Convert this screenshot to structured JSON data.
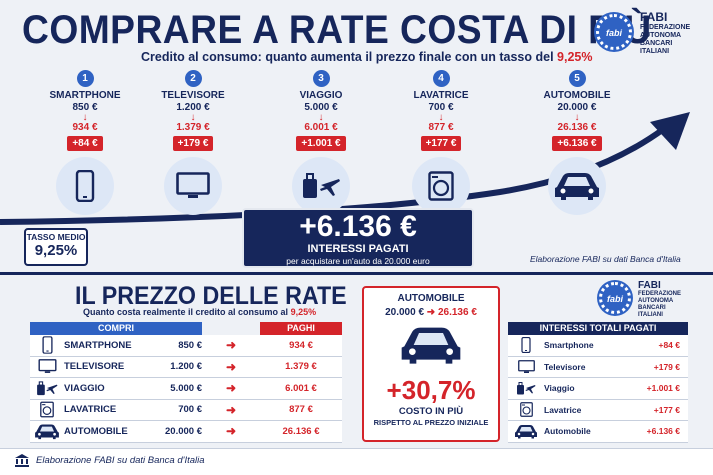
{
  "header": {
    "title": "COMPRARE A RATE COSTA DI PIÙ",
    "subtitle": "Credito al consumo: quanto aumenta il prezzo finale con un tasso del",
    "subtitle_rate": "9,25%"
  },
  "logo": {
    "mark": "fabi",
    "name": "FABI",
    "line1": "FEDERAZIONE",
    "line2": "AUTONOMA",
    "line3": "BANCARI",
    "line4": "ITALIANI"
  },
  "items": [
    {
      "num": "1",
      "name": "SMARTPHONE",
      "price": "850 €",
      "final": "934 €",
      "diff": "+84 €",
      "icon": "smartphone-icon"
    },
    {
      "num": "2",
      "name": "TELEVISORE",
      "price": "1.200 €",
      "final": "1.379 €",
      "diff": "+179 €",
      "icon": "tv-icon"
    },
    {
      "num": "3",
      "name": "VIAGGIO",
      "price": "5.000 €",
      "final": "6.001 €",
      "diff": "+1.001 €",
      "icon": "suitcase-plane-icon"
    },
    {
      "num": "4",
      "name": "LAVATRICE",
      "price": "700 €",
      "final": "877 €",
      "diff": "+177 €",
      "icon": "washing-machine-icon"
    },
    {
      "num": "5",
      "name": "AUTOMOBILE",
      "price": "20.000 €",
      "final": "26.136 €",
      "diff": "+6.136 €",
      "icon": "car-icon"
    }
  ],
  "tasso": {
    "label": "TASSO MEDIO",
    "value": "9,25%"
  },
  "big_box": {
    "amount": "+6.136 €",
    "label": "INTERESSI PAGATI",
    "sub": "per acquistare un'auto da 20.000 euro"
  },
  "source_top": "Elaborazione FABI su dati Banca d'Italia",
  "bottom": {
    "title": "IL PREZZO DELLE RATE",
    "subtitle": "Quanto costa realmente il credito al consumo al",
    "subtitle_rate": "9,25%",
    "col_compri": "COMPRI",
    "col_paghi": "PAGHI",
    "rows": [
      {
        "name": "SMARTPHONE",
        "price": "850 €",
        "paid": "934 €",
        "icon": "smartphone-icon"
      },
      {
        "name": "TELEVISORE",
        "price": "1.200 €",
        "paid": "1.379 €",
        "icon": "tv-icon"
      },
      {
        "name": "VIAGGIO",
        "price": "5.000 €",
        "paid": "6.001 €",
        "icon": "suitcase-plane-icon"
      },
      {
        "name": "LAVATRICE",
        "price": "700 €",
        "paid": "877 €",
        "icon": "washing-machine-icon"
      },
      {
        "name": "AUTOMOBILE",
        "price": "20.000 €",
        "paid": "26.136 €",
        "icon": "car-icon"
      }
    ],
    "arrow": "➜"
  },
  "auto_box": {
    "title": "AUTOMOBILE",
    "from": "20.000 €",
    "to": "26.136 €",
    "pct": "+30,7%",
    "costo": "COSTO IN PIÙ",
    "rispetto": "RISPETTO AL PREZZO INIZIALE"
  },
  "interessi": {
    "title": "INTERESSI TOTALI PAGATI",
    "rows": [
      {
        "name": "Smartphone",
        "value": "+84 €"
      },
      {
        "name": "Televisore",
        "value": "+179 €"
      },
      {
        "name": "Viaggio",
        "value": "+1.001 €"
      },
      {
        "name": "Lavatrice",
        "value": "+177 €"
      },
      {
        "name": "Automobile",
        "value": "+6.136 €"
      }
    ]
  },
  "footer": "Elaborazione FABI su dati Banca d'Italia",
  "colors": {
    "navy": "#16265b",
    "red": "#d4242a",
    "blue": "#2f62c3",
    "light": "#dde7f6"
  }
}
